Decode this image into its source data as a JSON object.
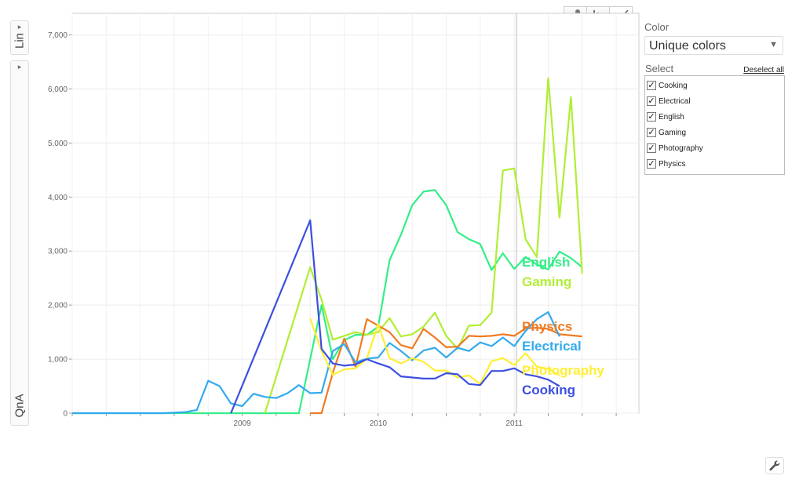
{
  "toggles": {
    "scale_label": "Lin",
    "dataset_label": "QnA",
    "arrow": "▸"
  },
  "chart_type_buttons": [
    {
      "name": "bubble-chart-icon",
      "active": false
    },
    {
      "name": "bar-chart-icon",
      "active": false
    },
    {
      "name": "line-chart-icon",
      "active": true
    }
  ],
  "panel": {
    "color_label": "Color",
    "color_value": "Unique colors",
    "select_label": "Select",
    "deselect_all": "Deselect all",
    "items": [
      {
        "label": "Cooking",
        "checked": true
      },
      {
        "label": "Electrical",
        "checked": true
      },
      {
        "label": "English",
        "checked": true
      },
      {
        "label": "Gaming",
        "checked": true
      },
      {
        "label": "Photography",
        "checked": true
      },
      {
        "label": "Physics",
        "checked": true
      }
    ]
  },
  "chart_data": {
    "type": "line",
    "title": "",
    "xlabel": "",
    "ylabel": "",
    "ylim": [
      0,
      7400
    ],
    "xlim": [
      "2008-04",
      "2012-06"
    ],
    "y_ticks": [
      "0",
      "1,000",
      "2,000",
      "3,000",
      "4,000",
      "5,000",
      "6,000",
      "7,000"
    ],
    "x_ticks": [
      "2009",
      "2010",
      "2011"
    ],
    "grid": true,
    "legend": "end-of-line labels",
    "series": [
      {
        "name": "English",
        "color": "#33ee88",
        "points": [
          [
            "2008-04",
            0
          ],
          [
            "2008-06",
            0
          ],
          [
            "2008-08",
            0
          ],
          [
            "2008-10",
            0
          ],
          [
            "2008-12",
            0
          ],
          [
            "2009-02",
            0
          ],
          [
            "2009-04",
            0
          ],
          [
            "2009-06",
            0
          ],
          [
            "2009-08",
            0
          ],
          [
            "2009-10",
            0
          ],
          [
            "2009-12",
            0
          ],
          [
            "2010-01",
            1000
          ],
          [
            "2010-02",
            2000
          ],
          [
            "2010-03",
            1000
          ],
          [
            "2010-04",
            1350
          ],
          [
            "2010-05",
            1450
          ],
          [
            "2010-06",
            1450
          ],
          [
            "2010-07",
            1600
          ],
          [
            "2010-08",
            2830
          ],
          [
            "2010-09",
            3300
          ],
          [
            "2010-10",
            3850
          ],
          [
            "2010-11",
            4100
          ],
          [
            "2010-12",
            4130
          ],
          [
            "2011-01",
            3850
          ],
          [
            "2011-02",
            3350
          ],
          [
            "2011-03",
            3220
          ],
          [
            "2011-04",
            3130
          ],
          [
            "2011-05",
            2650
          ],
          [
            "2011-06",
            2960
          ],
          [
            "2011-07",
            2670
          ],
          [
            "2011-08",
            2890
          ],
          [
            "2011-09",
            2750
          ],
          [
            "2011-10",
            2660
          ],
          [
            "2011-11",
            2990
          ],
          [
            "2011-12",
            2870
          ],
          [
            "2012-01",
            2700
          ]
        ]
      },
      {
        "name": "Gaming",
        "color": "#b0ee33",
        "points": [
          [
            "2009-09",
            0
          ],
          [
            "2010-01",
            2700
          ],
          [
            "2010-02",
            2100
          ],
          [
            "2010-03",
            1360
          ],
          [
            "2010-04",
            1430
          ],
          [
            "2010-05",
            1500
          ],
          [
            "2010-06",
            1450
          ],
          [
            "2010-07",
            1500
          ],
          [
            "2010-08",
            1760
          ],
          [
            "2010-09",
            1420
          ],
          [
            "2010-10",
            1460
          ],
          [
            "2010-11",
            1600
          ],
          [
            "2010-12",
            1860
          ],
          [
            "2011-01",
            1430
          ],
          [
            "2011-02",
            1190
          ],
          [
            "2011-03",
            1620
          ],
          [
            "2011-04",
            1630
          ],
          [
            "2011-05",
            1860
          ],
          [
            "2011-06",
            4490
          ],
          [
            "2011-07",
            4530
          ],
          [
            "2011-08",
            3220
          ],
          [
            "2011-09",
            2890
          ],
          [
            "2011-10",
            6200
          ],
          [
            "2011-11",
            3620
          ],
          [
            "2011-12",
            5850
          ],
          [
            "2012-01",
            2580
          ]
        ]
      },
      {
        "name": "Physics",
        "color": "#f07a22",
        "points": [
          [
            "2010-01",
            0
          ],
          [
            "2010-02",
            0
          ],
          [
            "2010-03",
            750
          ],
          [
            "2010-04",
            1380
          ],
          [
            "2010-05",
            860
          ],
          [
            "2010-06",
            1740
          ],
          [
            "2010-07",
            1620
          ],
          [
            "2010-08",
            1500
          ],
          [
            "2010-09",
            1260
          ],
          [
            "2010-10",
            1200
          ],
          [
            "2010-11",
            1560
          ],
          [
            "2010-12",
            1400
          ],
          [
            "2011-01",
            1220
          ],
          [
            "2011-02",
            1230
          ],
          [
            "2011-03",
            1430
          ],
          [
            "2011-04",
            1420
          ],
          [
            "2011-05",
            1430
          ],
          [
            "2011-06",
            1460
          ],
          [
            "2011-07",
            1430
          ],
          [
            "2011-08",
            1570
          ],
          [
            "2011-09",
            1580
          ],
          [
            "2011-10",
            1560
          ],
          [
            "2011-11",
            1460
          ],
          [
            "2012-01",
            1420
          ]
        ]
      },
      {
        "name": "Electrical",
        "color": "#33aaee",
        "points": [
          [
            "2008-04",
            0
          ],
          [
            "2008-08",
            0
          ],
          [
            "2008-12",
            0
          ],
          [
            "2009-02",
            20
          ],
          [
            "2009-03",
            60
          ],
          [
            "2009-04",
            600
          ],
          [
            "2009-05",
            500
          ],
          [
            "2009-06",
            180
          ],
          [
            "2009-07",
            130
          ],
          [
            "2009-08",
            360
          ],
          [
            "2009-09",
            300
          ],
          [
            "2009-10",
            280
          ],
          [
            "2009-11",
            370
          ],
          [
            "2009-12",
            520
          ],
          [
            "2010-01",
            370
          ],
          [
            "2010-02",
            380
          ],
          [
            "2010-03",
            1150
          ],
          [
            "2010-04",
            1280
          ],
          [
            "2010-05",
            940
          ],
          [
            "2010-06",
            1010
          ],
          [
            "2010-07",
            1030
          ],
          [
            "2010-08",
            1300
          ],
          [
            "2010-09",
            1150
          ],
          [
            "2010-10",
            980
          ],
          [
            "2010-11",
            1160
          ],
          [
            "2010-12",
            1210
          ],
          [
            "2011-01",
            1030
          ],
          [
            "2011-02",
            1210
          ],
          [
            "2011-03",
            1150
          ],
          [
            "2011-04",
            1310
          ],
          [
            "2011-05",
            1240
          ],
          [
            "2011-06",
            1400
          ],
          [
            "2011-07",
            1240
          ],
          [
            "2011-08",
            1520
          ],
          [
            "2011-09",
            1740
          ],
          [
            "2011-10",
            1870
          ],
          [
            "2011-11",
            1420
          ]
        ]
      },
      {
        "name": "Photography",
        "color": "#ffee33",
        "points": [
          [
            "2010-01",
            1750
          ],
          [
            "2010-02",
            1150
          ],
          [
            "2010-03",
            710
          ],
          [
            "2010-04",
            810
          ],
          [
            "2010-05",
            830
          ],
          [
            "2010-06",
            1010
          ],
          [
            "2010-07",
            1650
          ],
          [
            "2010-08",
            1020
          ],
          [
            "2010-09",
            920
          ],
          [
            "2010-10",
            1020
          ],
          [
            "2010-11",
            950
          ],
          [
            "2010-12",
            790
          ],
          [
            "2011-01",
            790
          ],
          [
            "2011-02",
            660
          ],
          [
            "2011-03",
            700
          ],
          [
            "2011-04",
            540
          ],
          [
            "2011-05",
            960
          ],
          [
            "2011-06",
            1020
          ],
          [
            "2011-07",
            890
          ],
          [
            "2011-08",
            1110
          ],
          [
            "2011-09",
            860
          ],
          [
            "2011-10",
            820
          ],
          [
            "2011-11",
            700
          ]
        ]
      },
      {
        "name": "Cooking",
        "color": "#3c4fe0",
        "points": [
          [
            "2009-06",
            0
          ],
          [
            "2010-01",
            3570
          ],
          [
            "2010-02",
            1190
          ],
          [
            "2010-03",
            920
          ],
          [
            "2010-04",
            880
          ],
          [
            "2010-05",
            900
          ],
          [
            "2010-06",
            1000
          ],
          [
            "2010-07",
            920
          ],
          [
            "2010-08",
            850
          ],
          [
            "2010-09",
            680
          ],
          [
            "2010-10",
            660
          ],
          [
            "2010-11",
            640
          ],
          [
            "2010-12",
            640
          ],
          [
            "2011-01",
            740
          ],
          [
            "2011-02",
            720
          ],
          [
            "2011-03",
            540
          ],
          [
            "2011-04",
            520
          ],
          [
            "2011-05",
            780
          ],
          [
            "2011-06",
            780
          ],
          [
            "2011-07",
            830
          ],
          [
            "2011-08",
            720
          ],
          [
            "2011-09",
            680
          ],
          [
            "2011-10",
            620
          ],
          [
            "2011-11",
            500
          ]
        ]
      }
    ]
  }
}
